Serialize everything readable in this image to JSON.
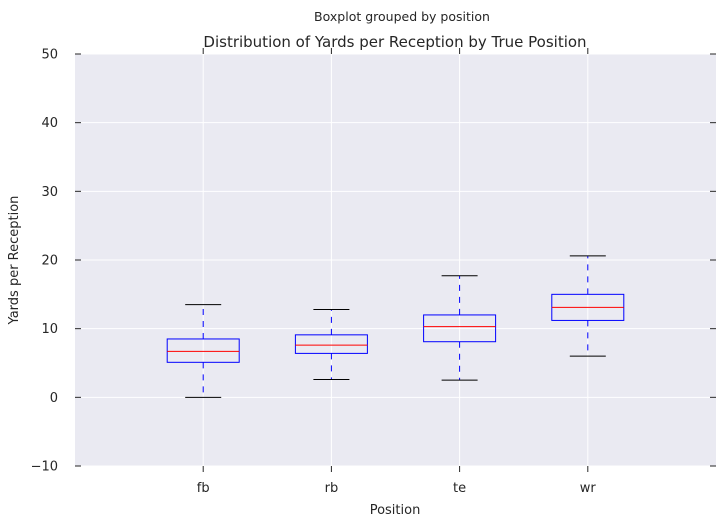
{
  "chart_data": {
    "type": "boxplot",
    "suptitle": "Boxplot grouped by position",
    "title": "Distribution of Yards per Reception by True Position",
    "xlabel": "Position",
    "ylabel": "Yards per Reception",
    "ylim": [
      -10,
      50
    ],
    "yticks": [
      -10,
      0,
      10,
      20,
      30,
      40,
      50
    ],
    "grid": true,
    "categories": [
      "fb",
      "rb",
      "te",
      "wr"
    ],
    "boxes": [
      {
        "label": "fb",
        "whisker_low": 0.0,
        "q1": 5.1,
        "median": 6.7,
        "q3": 8.5,
        "whisker_high": 13.5
      },
      {
        "label": "rb",
        "whisker_low": 2.6,
        "q1": 6.4,
        "median": 7.6,
        "q3": 9.1,
        "whisker_high": 12.8
      },
      {
        "label": "te",
        "whisker_low": 2.5,
        "q1": 8.1,
        "median": 10.3,
        "q3": 12.0,
        "whisker_high": 17.7
      },
      {
        "label": "wr",
        "whisker_low": 6.0,
        "q1": 11.2,
        "median": 13.1,
        "q3": 15.0,
        "whisker_high": 20.6
      }
    ],
    "colors": {
      "background": "#eaeaf2",
      "grid": "#ffffff",
      "box": "#0000ff",
      "median": "#ff0000",
      "cap": "#000000"
    }
  }
}
